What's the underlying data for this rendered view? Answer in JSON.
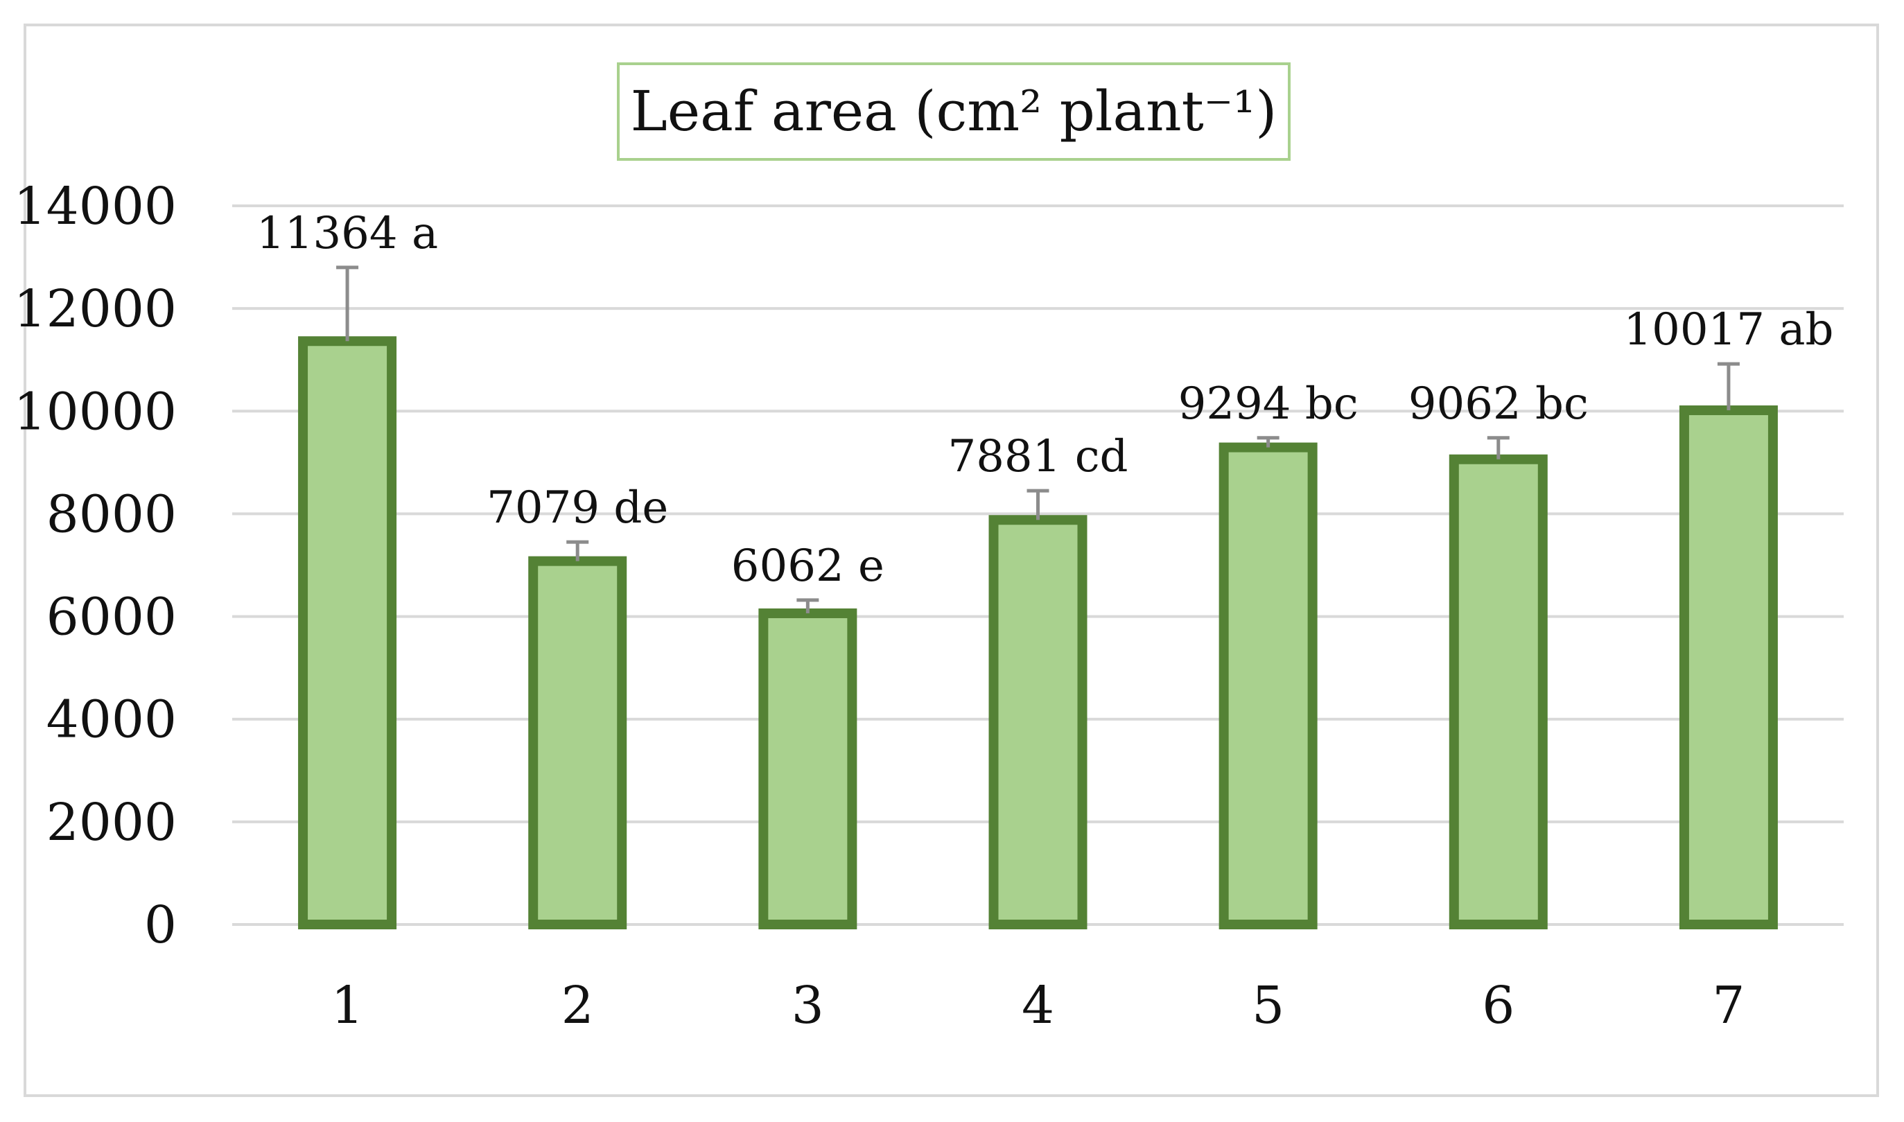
{
  "chart_data": {
    "type": "bar",
    "title": "Leaf area (cm² plant⁻¹)",
    "categories": [
      "1",
      "2",
      "3",
      "4",
      "5",
      "6",
      "7"
    ],
    "values": [
      11364,
      7079,
      6062,
      7881,
      9294,
      9062,
      10017
    ],
    "error_upper": [
      12800,
      7450,
      6320,
      8450,
      9480,
      9480,
      10920
    ],
    "error_lower": [
      11364,
      7079,
      6062,
      7881,
      9294,
      9062,
      10017
    ],
    "data_labels": [
      "11364 a",
      "7079 de",
      "6062 e",
      "7881 cd",
      "9294 bc",
      "9062 bc",
      "10017 ab"
    ],
    "ylim": [
      0,
      14000
    ],
    "yticks": [
      "0",
      "2000",
      "4000",
      "6000",
      "8000",
      "10000",
      "12000",
      "14000"
    ],
    "xlabel": "",
    "ylabel": "",
    "grid": true,
    "legend": "none",
    "colors": {
      "bar_fill": "#a9d18e",
      "bar_border": "#548235",
      "error_bar": "#8c8c8c",
      "grid": "#d9d9d9",
      "title_border": "#a9d18e"
    }
  }
}
